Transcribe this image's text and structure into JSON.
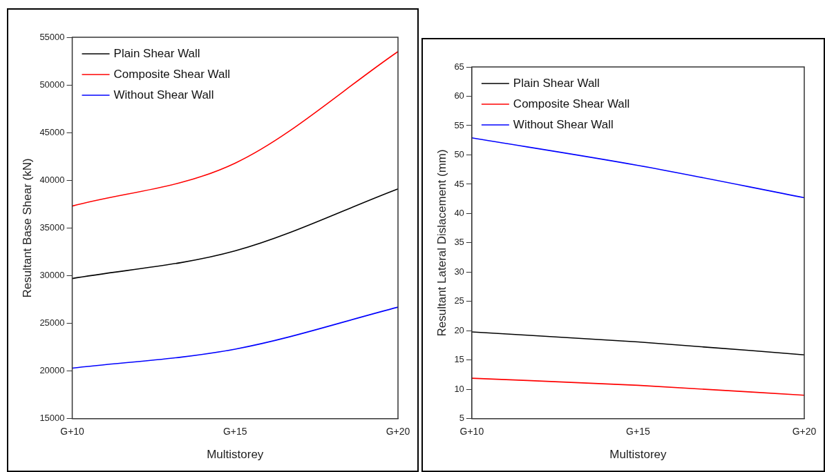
{
  "chart_data": [
    {
      "type": "line",
      "xlabel": "Multistorey",
      "ylabel": "Resultant Base Shear (kN)",
      "categories": [
        "G+10",
        "G+15",
        "G+20"
      ],
      "ylim": [
        15000,
        55000
      ],
      "yticks": [
        15000,
        20000,
        25000,
        30000,
        35000,
        40000,
        45000,
        50000,
        55000
      ],
      "grid": false,
      "legend": "top left",
      "marker": "none",
      "line_style": "solid",
      "series": [
        {
          "name": "Plain Shear Wall",
          "color": "#000000",
          "values": [
            29700,
            32600,
            39100
          ]
        },
        {
          "name": "Composite Shear Wall",
          "color": "#ff0000",
          "values": [
            37300,
            41800,
            53500
          ]
        },
        {
          "name": "Without Shear Wall",
          "color": "#0000ff",
          "values": [
            20300,
            22300,
            26700
          ]
        }
      ]
    },
    {
      "type": "line",
      "xlabel": "Multistorey",
      "ylabel": "Resultant Lateral Dislacement (mm)",
      "categories": [
        "G+10",
        "G+15",
        "G+20"
      ],
      "ylim": [
        5,
        65
      ],
      "yticks": [
        5,
        10,
        15,
        20,
        25,
        30,
        35,
        40,
        45,
        50,
        55,
        60,
        65
      ],
      "grid": false,
      "legend": "top left",
      "marker": "none",
      "line_style": "solid",
      "series": [
        {
          "name": "Plain Shear Wall",
          "color": "#000000",
          "values": [
            19.8,
            18.1,
            15.9
          ]
        },
        {
          "name": "Composite Shear Wall",
          "color": "#ff0000",
          "values": [
            11.9,
            10.7,
            9.0
          ]
        },
        {
          "name": "Without Shear Wall",
          "color": "#0000ff",
          "values": [
            52.9,
            48.2,
            42.7
          ]
        }
      ]
    }
  ]
}
